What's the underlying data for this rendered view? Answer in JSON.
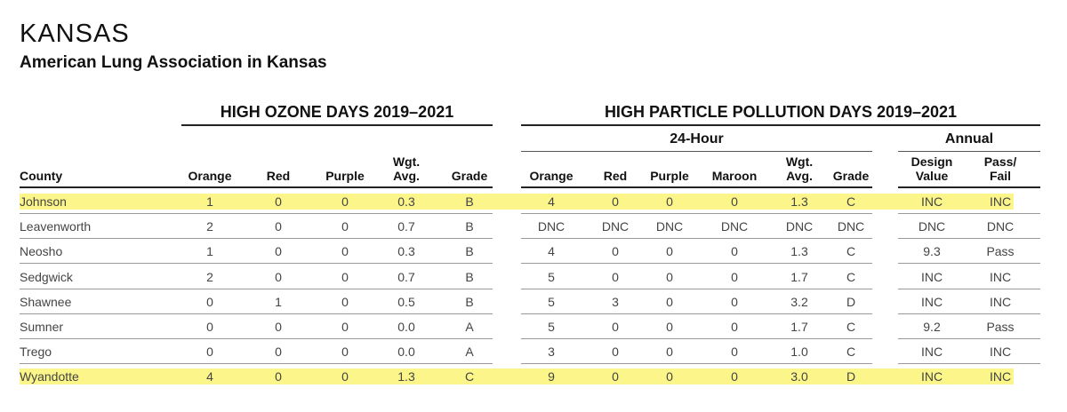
{
  "title": "KANSAS",
  "subtitle": "American Lung Association in Kansas",
  "groups": {
    "ozone": "HIGH OZONE DAYS 2019–2021",
    "particle": "HIGH PARTICLE POLLUTION DAYS 2019–2021",
    "hour24": "24-Hour",
    "annual": "Annual"
  },
  "columns": [
    {
      "key": "county",
      "label": "County"
    },
    {
      "key": "o_orange",
      "label": "Orange"
    },
    {
      "key": "o_red",
      "label": "Red"
    },
    {
      "key": "o_purple",
      "label": "Purple"
    },
    {
      "key": "o_wgt",
      "label": "Wgt.\nAvg."
    },
    {
      "key": "o_grade",
      "label": "Grade"
    },
    {
      "key": "p_orange",
      "label": "Orange"
    },
    {
      "key": "p_red",
      "label": "Red"
    },
    {
      "key": "p_purple",
      "label": "Purple"
    },
    {
      "key": "p_maroon",
      "label": "Maroon"
    },
    {
      "key": "p_wgt",
      "label": "Wgt.\nAvg."
    },
    {
      "key": "p_grade",
      "label": "Grade"
    },
    {
      "key": "design",
      "label": "Design\nValue"
    },
    {
      "key": "passfail",
      "label": "Pass/\nFail"
    }
  ],
  "highlight_color": "#fbf58a",
  "rows": [
    {
      "highlight": true,
      "cells": [
        "Johnson",
        "1",
        "0",
        "0",
        "0.3",
        "B",
        "4",
        "0",
        "0",
        "0",
        "1.3",
        "C",
        "INC",
        "INC"
      ]
    },
    {
      "highlight": false,
      "cells": [
        "Leavenworth",
        "2",
        "0",
        "0",
        "0.7",
        "B",
        "DNC",
        "DNC",
        "DNC",
        "DNC",
        "DNC",
        "DNC",
        "DNC",
        "DNC"
      ]
    },
    {
      "highlight": false,
      "cells": [
        "Neosho",
        "1",
        "0",
        "0",
        "0.3",
        "B",
        "4",
        "0",
        "0",
        "0",
        "1.3",
        "C",
        "9.3",
        "Pass"
      ]
    },
    {
      "highlight": false,
      "cells": [
        "Sedgwick",
        "2",
        "0",
        "0",
        "0.7",
        "B",
        "5",
        "0",
        "0",
        "0",
        "1.7",
        "C",
        "INC",
        "INC"
      ]
    },
    {
      "highlight": false,
      "cells": [
        "Shawnee",
        "0",
        "1",
        "0",
        "0.5",
        "B",
        "5",
        "3",
        "0",
        "0",
        "3.2",
        "D",
        "INC",
        "INC"
      ]
    },
    {
      "highlight": false,
      "cells": [
        "Sumner",
        "0",
        "0",
        "0",
        "0.0",
        "A",
        "5",
        "0",
        "0",
        "0",
        "1.7",
        "C",
        "9.2",
        "Pass"
      ]
    },
    {
      "highlight": false,
      "cells": [
        "Trego",
        "0",
        "0",
        "0",
        "0.0",
        "A",
        "3",
        "0",
        "0",
        "0",
        "1.0",
        "C",
        "INC",
        "INC"
      ]
    },
    {
      "highlight": true,
      "cells": [
        "Wyandotte",
        "4",
        "0",
        "0",
        "1.3",
        "C",
        "9",
        "0",
        "0",
        "0",
        "3.0",
        "D",
        "INC",
        "INC"
      ]
    }
  ]
}
